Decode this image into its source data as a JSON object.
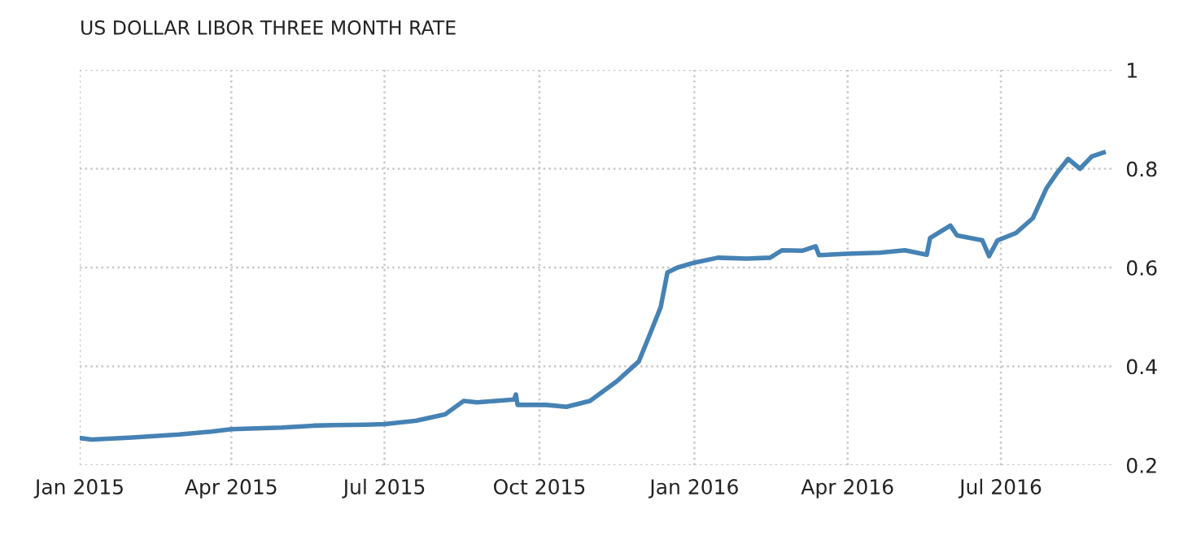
{
  "chart_data": {
    "type": "line",
    "title": "US DOLLAR LIBOR THREE MONTH RATE",
    "x": [
      "2015-01-01",
      "2015-01-08",
      "2015-02-01",
      "2015-03-01",
      "2015-03-20",
      "2015-04-01",
      "2015-05-01",
      "2015-05-20",
      "2015-06-01",
      "2015-06-20",
      "2015-07-01",
      "2015-07-20",
      "2015-08-06",
      "2015-08-17",
      "2015-08-25",
      "2015-09-05",
      "2015-09-16",
      "2015-09-17",
      "2015-09-18",
      "2015-10-05",
      "2015-10-17",
      "2015-10-31",
      "2015-11-16",
      "2015-11-29",
      "2015-12-05",
      "2015-12-12",
      "2015-12-16",
      "2015-12-22",
      "2016-01-01",
      "2016-01-15",
      "2016-02-01",
      "2016-02-15",
      "2016-02-22",
      "2016-03-05",
      "2016-03-13",
      "2016-03-15",
      "2016-04-01",
      "2016-04-20",
      "2016-05-05",
      "2016-05-18",
      "2016-05-20",
      "2016-06-01",
      "2016-06-05",
      "2016-06-20",
      "2016-06-24",
      "2016-06-29",
      "2016-07-10",
      "2016-07-20",
      "2016-07-28",
      "2016-08-03",
      "2016-08-10",
      "2016-08-17",
      "2016-08-24",
      "2016-08-31"
    ],
    "series": [
      {
        "color": "#4682b4",
        "values": [
          0.255,
          0.252,
          0.256,
          0.262,
          0.268,
          0.273,
          0.276,
          0.28,
          0.281,
          0.282,
          0.283,
          0.29,
          0.303,
          0.33,
          0.327,
          0.33,
          0.333,
          0.343,
          0.322,
          0.322,
          0.318,
          0.33,
          0.37,
          0.41,
          0.46,
          0.52,
          0.59,
          0.6,
          0.61,
          0.62,
          0.618,
          0.62,
          0.635,
          0.634,
          0.643,
          0.625,
          0.628,
          0.63,
          0.635,
          0.626,
          0.66,
          0.685,
          0.665,
          0.655,
          0.623,
          0.655,
          0.67,
          0.7,
          0.76,
          0.79,
          0.82,
          0.8,
          0.825,
          0.833
        ]
      }
    ],
    "ylim": [
      0.2,
      1
    ],
    "yticks": [
      0.2,
      0.4,
      0.6,
      0.8,
      1
    ],
    "xlim": [
      "2015-01-01",
      "2016-09-05"
    ],
    "xticks": [
      {
        "value": "2015-01-01",
        "label": "Jan 2015"
      },
      {
        "value": "2015-04-01",
        "label": "Apr 2015"
      },
      {
        "value": "2015-07-01",
        "label": "Jul 2015"
      },
      {
        "value": "2015-10-01",
        "label": "Oct 2015"
      },
      {
        "value": "2016-01-01",
        "label": "Jan 2016"
      },
      {
        "value": "2016-04-01",
        "label": "Apr 2016"
      },
      {
        "value": "2016-07-01",
        "label": "Jul 2016"
      }
    ],
    "grid": true,
    "marker": "none",
    "line_style": "solid"
  }
}
